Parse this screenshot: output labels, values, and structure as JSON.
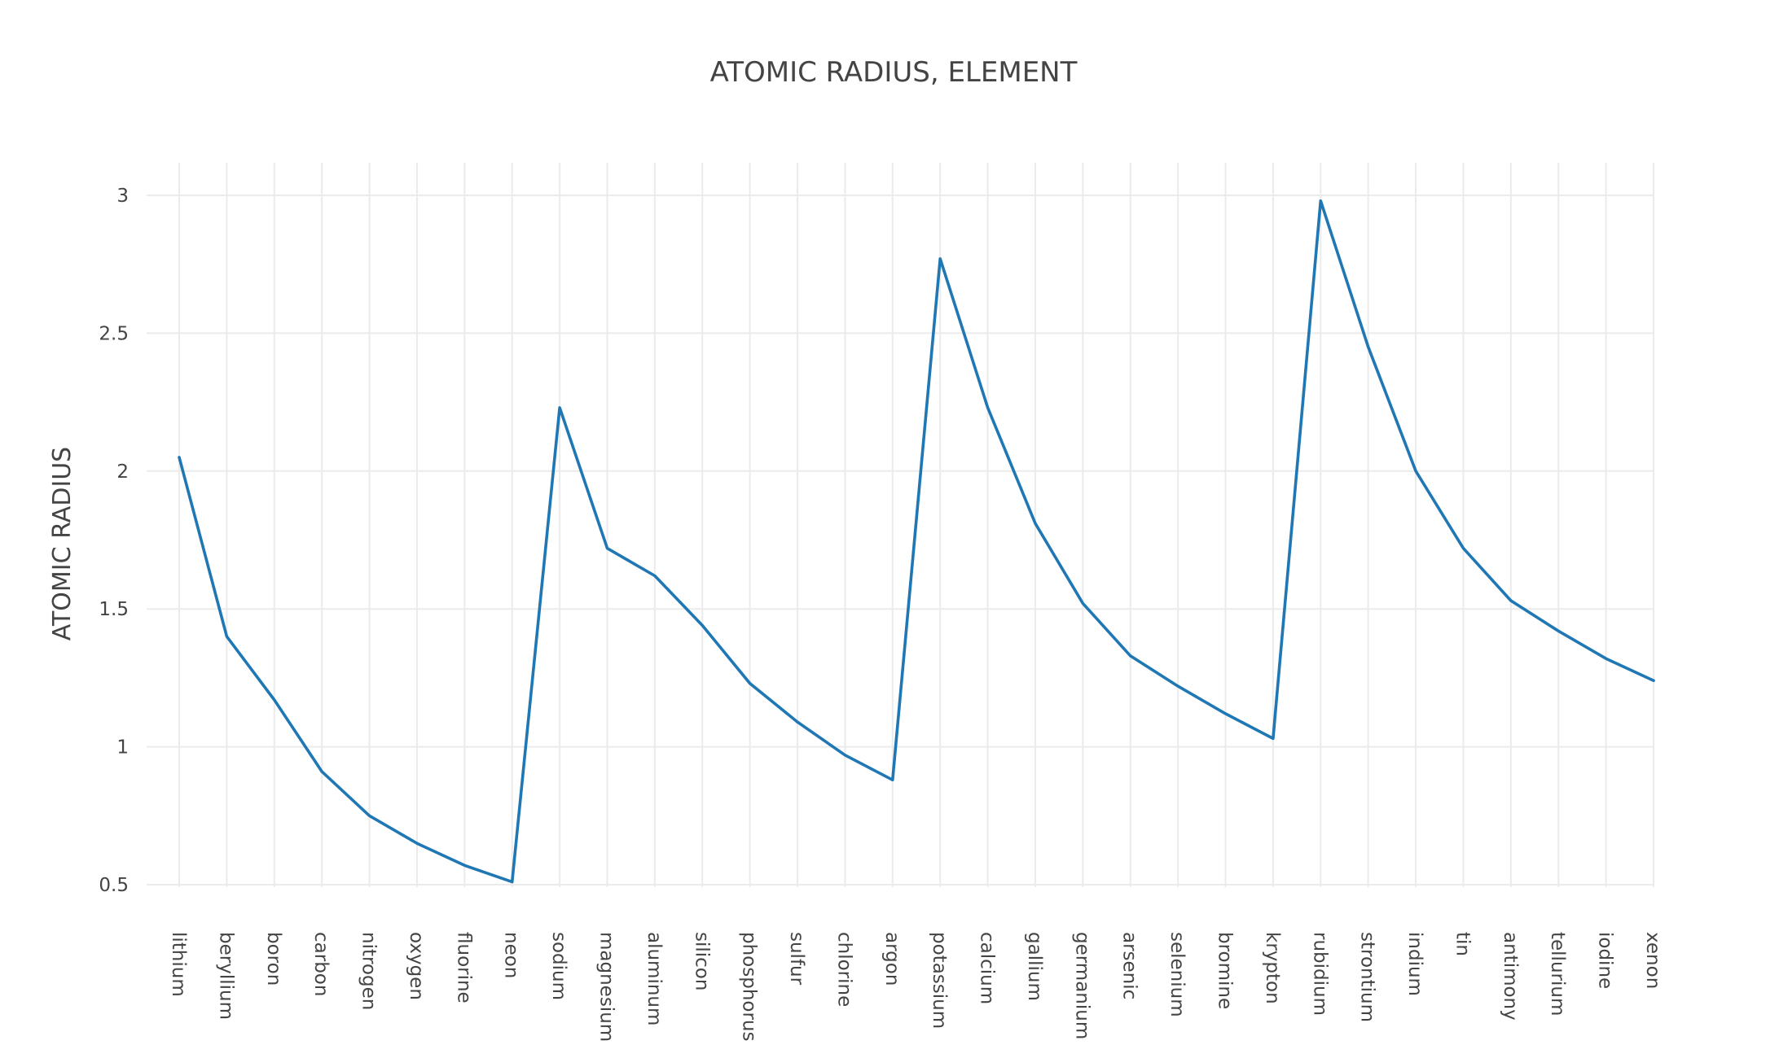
{
  "chart_data": {
    "type": "line",
    "title": "ATOMIC RADIUS, ELEMENT",
    "xlabel": "",
    "ylabel": "ATOMIC RADIUS",
    "ylim": [
      0.45,
      3.12
    ],
    "yticks": [
      "0.5",
      "1",
      "1.5",
      "2",
      "2.5",
      "3"
    ],
    "grid": true,
    "categories": [
      "lithium",
      "beryllium",
      "boron",
      "carbon",
      "nitrogen",
      "oxygen",
      "fluorine",
      "neon",
      "sodium",
      "magnesium",
      "aluminum",
      "silicon",
      "phosphorus",
      "sulfur",
      "chlorine",
      "argon",
      "potassium",
      "calcium",
      "gallium",
      "germanium",
      "arsenic",
      "selenium",
      "bromine",
      "krypton",
      "rubidium",
      "strontium",
      "indium",
      "tin",
      "antimony",
      "tellurium",
      "iodine",
      "xenon"
    ],
    "series": [
      {
        "color": "#1f77b4",
        "values": [
          2.05,
          1.4,
          1.17,
          0.91,
          0.75,
          0.65,
          0.57,
          0.51,
          2.23,
          1.72,
          1.62,
          1.44,
          1.23,
          1.09,
          0.97,
          0.88,
          2.77,
          2.23,
          1.81,
          1.52,
          1.33,
          1.22,
          1.12,
          1.03,
          2.98,
          2.45,
          2.0,
          1.72,
          1.53,
          1.42,
          1.32,
          1.24
        ]
      }
    ]
  }
}
